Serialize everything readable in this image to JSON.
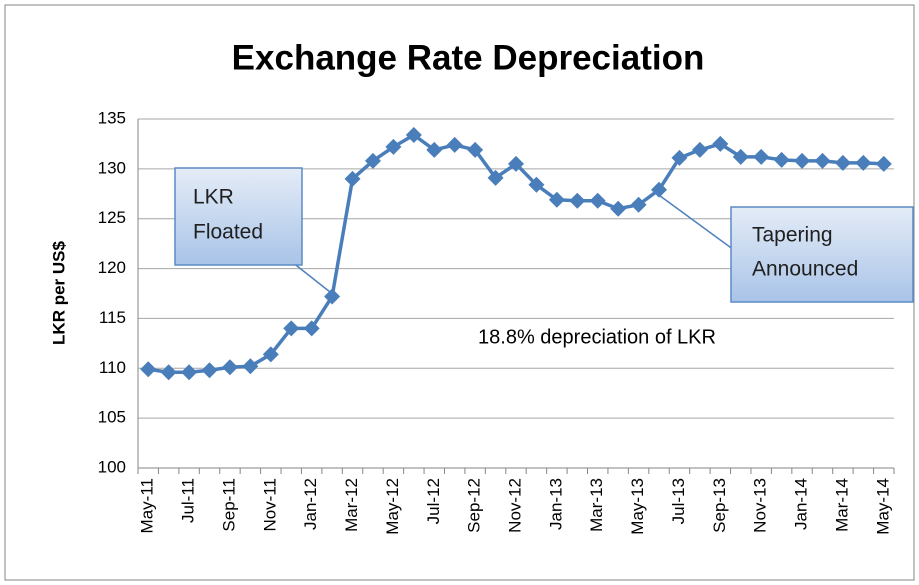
{
  "chart_data": {
    "type": "line",
    "title": "Exchange Rate Depreciation",
    "y_label": "LKR per US$",
    "categories": [
      "May-11",
      null,
      "Jul-11",
      null,
      "Sep-11",
      null,
      "Nov-11",
      null,
      "Jan-12",
      null,
      "Mar-12",
      null,
      "May-12",
      null,
      "Jul-12",
      null,
      "Sep-12",
      null,
      "Nov-12",
      null,
      "Jan-13",
      null,
      "Mar-13",
      null,
      "May-13",
      null,
      "Jul-13",
      null,
      "Sep-13",
      null,
      "Nov-13",
      null,
      "Jan-14",
      null,
      "Mar-14",
      null,
      "May-14"
    ],
    "values": [
      109.9,
      109.6,
      109.6,
      109.8,
      110.1,
      110.2,
      111.4,
      114.0,
      114.0,
      117.2,
      129.0,
      130.8,
      132.2,
      133.4,
      131.9,
      132.4,
      131.9,
      129.1,
      130.5,
      128.4,
      126.9,
      126.8,
      126.8,
      126.0,
      126.4,
      127.9,
      131.1,
      131.9,
      132.5,
      131.2,
      131.2,
      130.9,
      130.8,
      130.8,
      130.6,
      130.6,
      130.5
    ],
    "color": "#4a7ebb",
    "ylim": [
      100,
      135
    ],
    "yticks": [
      100,
      105,
      110,
      115,
      120,
      125,
      130,
      135
    ],
    "grid": true,
    "annotations": [
      {
        "lines": [
          "LKR",
          "Floated"
        ]
      },
      {
        "lines": [
          "Tapering",
          "Announced"
        ]
      },
      {
        "text": "18.8% depreciation of LKR"
      }
    ]
  }
}
